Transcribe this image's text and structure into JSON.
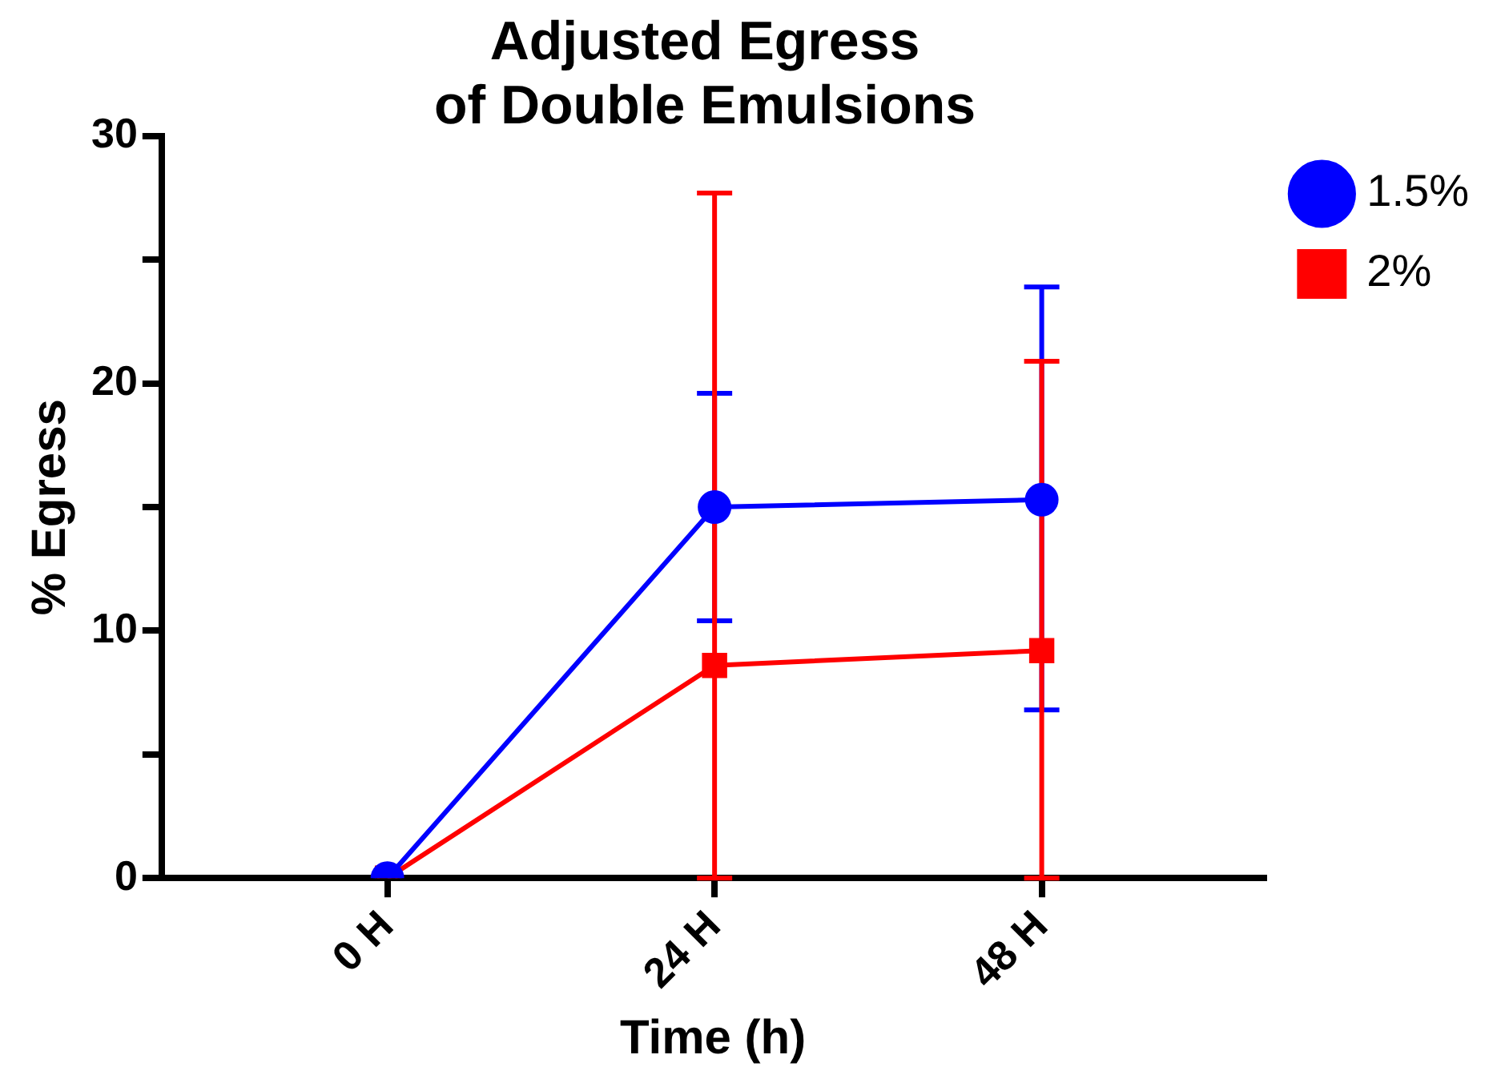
{
  "chart_data": {
    "type": "line",
    "title": "Adjusted Egress\nof Double Emulsions",
    "xlabel": "Time (h)",
    "ylabel": "% Egress",
    "categories": [
      "0 H",
      "24 H",
      "48 H"
    ],
    "series": [
      {
        "name": "1.5%",
        "color": "#0000ff",
        "marker": "circle",
        "values": [
          0,
          15,
          15.3
        ],
        "errors": [
          null,
          [
            10.4,
            19.6
          ],
          [
            6.8,
            23.9
          ]
        ]
      },
      {
        "name": "2%",
        "color": "#ff0000",
        "marker": "square",
        "values": [
          0,
          8.6,
          9.2
        ],
        "errors": [
          null,
          [
            0,
            27.7
          ],
          [
            0,
            20.9
          ]
        ]
      }
    ],
    "ylim": [
      0,
      30
    ],
    "yticks": [
      0,
      {
        "value": 5,
        "label": null
      },
      10,
      {
        "value": 15,
        "label": null
      },
      20,
      {
        "value": 25,
        "label": null
      },
      30
    ],
    "grid": false,
    "legend": "top right",
    "line_style": "solid"
  }
}
